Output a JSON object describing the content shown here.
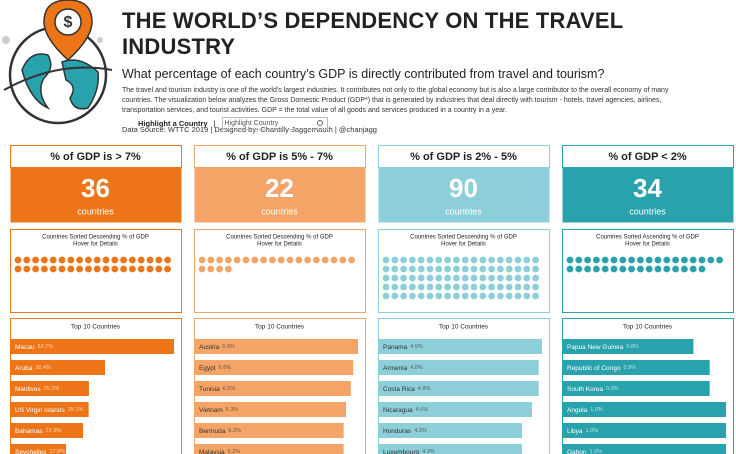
{
  "header": {
    "title": "THE WORLD’S DEPENDENCY ON THE TRAVEL INDUSTRY",
    "subtitle": "What percentage of each country’s GDP is directly contributed from travel and tourism?",
    "description": "The travel and tourism industry is one of the world's largest industries. It contributes not only to the global economy but is also a large contributor to the overall economy of many countries. The visualization below analyzes the Gross Domestic Product (GDP*) that is generated by industries that deal directly with tourism - hotels, travel agencies, airlines, transportation services, and tourist activities. GDP = the total value of all goods and services produced in a country in a year.",
    "source": "Data Source: WTTC 2019  | Designed by: Chantilly Jaggernauth  |  @chanjagg",
    "highlight_label": "Highlight a Country",
    "search_placeholder": "Highlight Country"
  },
  "chart_data": [
    {
      "type": "bar",
      "title": "% of GDP is > 7%",
      "count": 36,
      "count_label": "countries",
      "dots_caption": [
        "Countries Sorted Descending  % of GDP",
        "Hover for Details"
      ],
      "top_title": "Top 10 Countries",
      "color": "#ee7517",
      "label_color": "#ffffff",
      "categories": [
        "Macau",
        "Aruba",
        "Maldives",
        "US Virgin Islands",
        "Bahamas",
        "Seychelles"
      ],
      "values": [
        52.7,
        30.4,
        25.2,
        25.1,
        23.3,
        17.8
      ],
      "value_labels": [
        "52.7%",
        "30.4%",
        "25.2%",
        "25.1%",
        "23.3%",
        "17.8%"
      ]
    },
    {
      "type": "bar",
      "title": "% of GDP is 5% - 7%",
      "count": 22,
      "count_label": "countries",
      "dots_caption": [
        "Countries Sorted Descending  % of GDP",
        "Hover for Details"
      ],
      "top_title": "Top 10 Countries",
      "color": "#f5a468",
      "label_color": "#333333",
      "categories": [
        "Austria",
        "Egypt",
        "Tunisia",
        "Vietnam",
        "Bermuda",
        "Malaysia"
      ],
      "values": [
        6.8,
        6.6,
        6.5,
        6.3,
        6.2,
        6.2
      ],
      "value_labels": [
        "6.8%",
        "6.6%",
        "6.5%",
        "6.3%",
        "6.2%",
        "6.2%"
      ]
    },
    {
      "type": "bar",
      "title": "% of GDP is 2% - 5%",
      "count": 90,
      "count_label": "countries",
      "dots_caption": [
        "Countries Sorted Descending  % of GDP",
        "Hover for Details"
      ],
      "top_title": "Top 10 Countries",
      "color": "#8ccfd8",
      "label_color": "#333333",
      "categories": [
        "Panama",
        "Armenia",
        "Costa Rica",
        "Nicaragua",
        "Honduras",
        "Luxembourg"
      ],
      "values": [
        4.9,
        4.8,
        4.8,
        4.6,
        4.3,
        4.3
      ],
      "value_labels": [
        "4.9%",
        "4.8%",
        "4.8%",
        "4.6%",
        "4.3%",
        "4.3%"
      ]
    },
    {
      "type": "bar",
      "title": "% of GDP < 2%",
      "count": 34,
      "count_label": "countries",
      "dots_caption": [
        "Countries Sorted Ascending  % of GDP",
        "Hover for Details"
      ],
      "top_title": "Top 10 Countries",
      "color": "#28a2ac",
      "label_color": "#ffffff",
      "categories": [
        "Papua New Guinea",
        "Republic of Congo",
        "South Korea",
        "Angola",
        "Libya",
        "Gabon"
      ],
      "values": [
        0.8,
        0.9,
        0.9,
        1.0,
        1.0,
        1.0
      ],
      "value_labels": [
        "0.8%",
        "0.9%",
        "0.9%",
        "1.0%",
        "1.0%",
        "1.0%"
      ]
    }
  ]
}
